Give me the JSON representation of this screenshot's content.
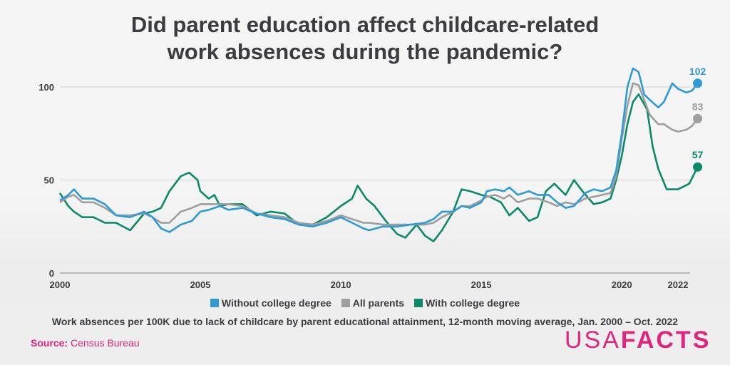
{
  "title_line1": "Did parent education affect childcare-related",
  "title_line2": "work absences during the pandemic?",
  "subtitle": "Work absences per 100K due to lack of childcare by parent educational attainment, 12-month moving average, Jan. 2000 – Oct. 2022",
  "source": {
    "label": "Source:",
    "value": "Census Bureau"
  },
  "logo": {
    "part1": "USA",
    "part2": "FACTS"
  },
  "colors": {
    "no_degree": "#2e9ad6",
    "all": "#9e9e9e",
    "with_degree": "#0a8a66",
    "accent": "#e0267c",
    "text": "#3c3c40"
  },
  "chart_data": {
    "type": "line",
    "title": "Did parent education affect childcare-related work absences during the pandemic?",
    "xlabel": "",
    "ylabel": "Work absences per 100K",
    "xlim": [
      2000,
      2022.8
    ],
    "ylim": [
      0,
      110
    ],
    "yticks": [
      0,
      50,
      100
    ],
    "xticks": [
      {
        "value": 2000,
        "label": "2000"
      },
      {
        "value": 2005,
        "label": "2005"
      },
      {
        "value": 2010,
        "label": "2010"
      },
      {
        "value": 2015,
        "label": "2015"
      },
      {
        "value": 2020,
        "label": "2020"
      },
      {
        "value": 2022,
        "label": "2022"
      }
    ],
    "series": [
      {
        "name": "Without college degree",
        "color": "#2e9ad6",
        "end_label": "102",
        "points": [
          [
            2000,
            39
          ],
          [
            2000.3,
            42
          ],
          [
            2000.5,
            45
          ],
          [
            2000.8,
            40
          ],
          [
            2001.2,
            40
          ],
          [
            2001.6,
            37
          ],
          [
            2002,
            31
          ],
          [
            2002.5,
            30
          ],
          [
            2003,
            33
          ],
          [
            2003.3,
            30
          ],
          [
            2003.6,
            24
          ],
          [
            2003.9,
            22
          ],
          [
            2004.3,
            26
          ],
          [
            2004.7,
            28
          ],
          [
            2005,
            33
          ],
          [
            2005.3,
            34
          ],
          [
            2005.7,
            36
          ],
          [
            2006,
            34
          ],
          [
            2006.5,
            35
          ],
          [
            2007,
            32
          ],
          [
            2007.5,
            30
          ],
          [
            2008,
            29
          ],
          [
            2008.5,
            26
          ],
          [
            2009,
            25
          ],
          [
            2009.5,
            27
          ],
          [
            2010,
            30
          ],
          [
            2010.4,
            27
          ],
          [
            2010.8,
            24
          ],
          [
            2011,
            23
          ],
          [
            2011.5,
            25
          ],
          [
            2012,
            25
          ],
          [
            2012.5,
            26
          ],
          [
            2013,
            27
          ],
          [
            2013.3,
            29
          ],
          [
            2013.6,
            33
          ],
          [
            2014,
            33
          ],
          [
            2014.3,
            36
          ],
          [
            2014.6,
            35
          ],
          [
            2015,
            38
          ],
          [
            2015.2,
            44
          ],
          [
            2015.5,
            45
          ],
          [
            2015.8,
            44
          ],
          [
            2016,
            46
          ],
          [
            2016.3,
            42
          ],
          [
            2016.7,
            44
          ],
          [
            2017,
            42
          ],
          [
            2017.4,
            42
          ],
          [
            2017.7,
            38
          ],
          [
            2018,
            35
          ],
          [
            2018.3,
            36
          ],
          [
            2018.7,
            43
          ],
          [
            2019,
            45
          ],
          [
            2019.3,
            44
          ],
          [
            2019.6,
            46
          ],
          [
            2019.8,
            55
          ],
          [
            2020,
            75
          ],
          [
            2020.2,
            100
          ],
          [
            2020.4,
            110
          ],
          [
            2020.6,
            108
          ],
          [
            2020.8,
            96
          ],
          [
            2021,
            93
          ],
          [
            2021.3,
            89
          ],
          [
            2021.5,
            92
          ],
          [
            2021.8,
            102
          ],
          [
            2022,
            99
          ],
          [
            2022.3,
            97
          ],
          [
            2022.5,
            98
          ],
          [
            2022.7,
            102
          ]
        ]
      },
      {
        "name": "All parents",
        "color": "#9e9e9e",
        "end_label": "83",
        "points": [
          [
            2000,
            38
          ],
          [
            2000.3,
            41
          ],
          [
            2000.5,
            42
          ],
          [
            2000.8,
            38
          ],
          [
            2001.2,
            38
          ],
          [
            2001.6,
            35
          ],
          [
            2002,
            31
          ],
          [
            2002.5,
            31
          ],
          [
            2003,
            32
          ],
          [
            2003.3,
            30
          ],
          [
            2003.6,
            27
          ],
          [
            2003.9,
            27
          ],
          [
            2004.3,
            33
          ],
          [
            2004.7,
            35
          ],
          [
            2005,
            37
          ],
          [
            2005.3,
            37
          ],
          [
            2005.7,
            37
          ],
          [
            2006,
            37
          ],
          [
            2006.5,
            36
          ],
          [
            2007,
            32
          ],
          [
            2007.5,
            31
          ],
          [
            2008,
            30
          ],
          [
            2008.5,
            27
          ],
          [
            2009,
            26
          ],
          [
            2009.5,
            28
          ],
          [
            2010,
            31
          ],
          [
            2010.4,
            29
          ],
          [
            2010.8,
            27
          ],
          [
            2011,
            27
          ],
          [
            2011.5,
            26
          ],
          [
            2012,
            26
          ],
          [
            2012.5,
            26
          ],
          [
            2013,
            26
          ],
          [
            2013.3,
            27
          ],
          [
            2013.6,
            30
          ],
          [
            2014,
            33
          ],
          [
            2014.3,
            36
          ],
          [
            2014.6,
            36
          ],
          [
            2015,
            39
          ],
          [
            2015.2,
            41
          ],
          [
            2015.5,
            42
          ],
          [
            2015.8,
            40
          ],
          [
            2016,
            42
          ],
          [
            2016.3,
            38
          ],
          [
            2016.7,
            40
          ],
          [
            2017,
            40
          ],
          [
            2017.4,
            38
          ],
          [
            2017.7,
            36
          ],
          [
            2018,
            38
          ],
          [
            2018.3,
            37
          ],
          [
            2018.7,
            40
          ],
          [
            2019,
            41
          ],
          [
            2019.3,
            42
          ],
          [
            2019.6,
            43
          ],
          [
            2019.8,
            52
          ],
          [
            2020,
            72
          ],
          [
            2020.2,
            90
          ],
          [
            2020.4,
            102
          ],
          [
            2020.6,
            101
          ],
          [
            2020.8,
            93
          ],
          [
            2021,
            85
          ],
          [
            2021.3,
            80
          ],
          [
            2021.5,
            80
          ],
          [
            2021.8,
            77
          ],
          [
            2022,
            76
          ],
          [
            2022.3,
            77
          ],
          [
            2022.5,
            79
          ],
          [
            2022.7,
            83
          ]
        ]
      },
      {
        "name": "With college degree",
        "color": "#0a8a66",
        "end_label": "57",
        "points": [
          [
            2000,
            43
          ],
          [
            2000.3,
            36
          ],
          [
            2000.5,
            33
          ],
          [
            2000.8,
            30
          ],
          [
            2001.2,
            30
          ],
          [
            2001.6,
            27
          ],
          [
            2002,
            27
          ],
          [
            2002.5,
            23
          ],
          [
            2003,
            32
          ],
          [
            2003.3,
            33
          ],
          [
            2003.6,
            35
          ],
          [
            2003.9,
            44
          ],
          [
            2004.3,
            52
          ],
          [
            2004.6,
            54
          ],
          [
            2004.9,
            50
          ],
          [
            2005,
            44
          ],
          [
            2005.3,
            40
          ],
          [
            2005.5,
            42
          ],
          [
            2005.7,
            36
          ],
          [
            2006,
            37
          ],
          [
            2006.5,
            37
          ],
          [
            2007,
            31
          ],
          [
            2007.5,
            33
          ],
          [
            2008,
            32
          ],
          [
            2008.5,
            26
          ],
          [
            2009,
            26
          ],
          [
            2009.5,
            30
          ],
          [
            2010,
            36
          ],
          [
            2010.4,
            40
          ],
          [
            2010.6,
            47
          ],
          [
            2010.9,
            40
          ],
          [
            2011.2,
            36
          ],
          [
            2011.6,
            28
          ],
          [
            2012,
            21
          ],
          [
            2012.3,
            19
          ],
          [
            2012.7,
            26
          ],
          [
            2013,
            20
          ],
          [
            2013.3,
            17
          ],
          [
            2013.6,
            23
          ],
          [
            2014,
            33
          ],
          [
            2014.3,
            45
          ],
          [
            2014.6,
            44
          ],
          [
            2015,
            42
          ],
          [
            2015.3,
            41
          ],
          [
            2015.7,
            38
          ],
          [
            2016,
            31
          ],
          [
            2016.3,
            35
          ],
          [
            2016.7,
            28
          ],
          [
            2017,
            30
          ],
          [
            2017.3,
            44
          ],
          [
            2017.6,
            48
          ],
          [
            2018,
            42
          ],
          [
            2018.3,
            50
          ],
          [
            2018.6,
            44
          ],
          [
            2019,
            37
          ],
          [
            2019.3,
            38
          ],
          [
            2019.6,
            40
          ],
          [
            2019.8,
            50
          ],
          [
            2020,
            63
          ],
          [
            2020.2,
            80
          ],
          [
            2020.4,
            92
          ],
          [
            2020.6,
            96
          ],
          [
            2020.9,
            88
          ],
          [
            2021.1,
            68
          ],
          [
            2021.3,
            56
          ],
          [
            2021.6,
            45
          ],
          [
            2022,
            45
          ],
          [
            2022.4,
            48
          ],
          [
            2022.7,
            57
          ]
        ]
      }
    ],
    "legend": [
      "Without college degree",
      "All parents",
      "With college degree"
    ]
  }
}
